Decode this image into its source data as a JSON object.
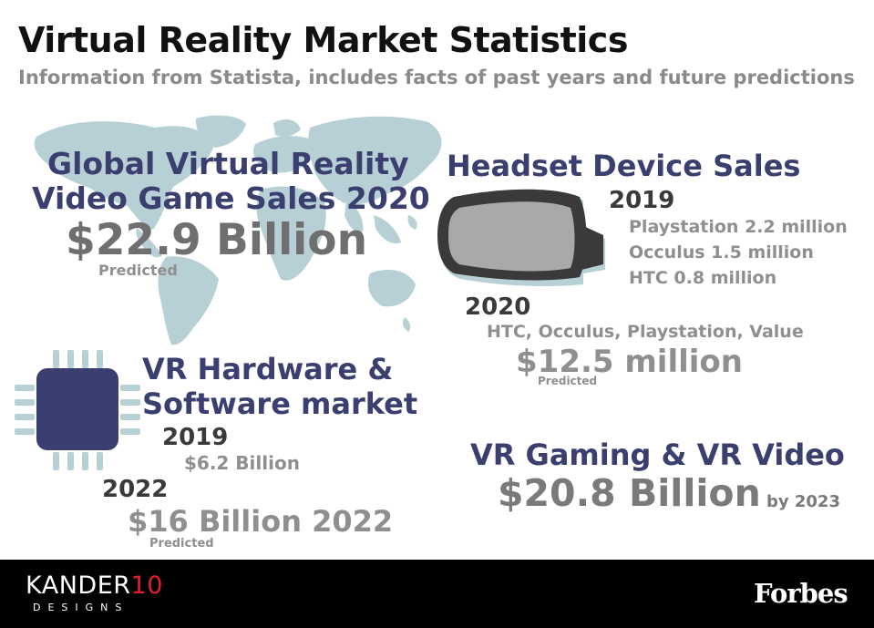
{
  "header": {
    "title": "Virtual Reality Market Statistics",
    "subtitle": "Information from Statista, includes facts of past years and future predictions"
  },
  "game_sales": {
    "heading_line1": "Global Virtual Reality",
    "heading_line2": "Video Game Sales 2020",
    "value": "$22.9 Billion",
    "note": "Predicted"
  },
  "headset": {
    "heading": "Headset Device Sales",
    "year_2019": "2019",
    "items_2019": [
      "Playstation 2.2 million",
      "Occulus 1.5 million",
      "HTC 0.8 million"
    ],
    "year_2020": "2020",
    "brands_2020": "HTC, Occulus, Playstation, Value",
    "value_2020": "$12.5 million",
    "note": "Predicted"
  },
  "hardware": {
    "heading_line1": "VR Hardware &",
    "heading_line2": "Software market",
    "year_2019": "2019",
    "value_2019": "$6.2 Billion",
    "year_2022": "2022",
    "value_2022": "$16 Billion 2022",
    "note": "Predicted"
  },
  "gaming_video": {
    "heading": "VR Gaming & VR Video",
    "value": "$20.8 Billion",
    "suffix": "by 2023"
  },
  "footer": {
    "brand_main": "KANDER",
    "brand_num": "10",
    "brand_sub": "DESIGNS",
    "partner": "Forbes"
  },
  "colors": {
    "navy": "#3b3f6f",
    "map": "#b7d0d6",
    "grey": "#8f8f8f",
    "footer_bg": "#000000",
    "brand_accent": "#e0202a"
  }
}
